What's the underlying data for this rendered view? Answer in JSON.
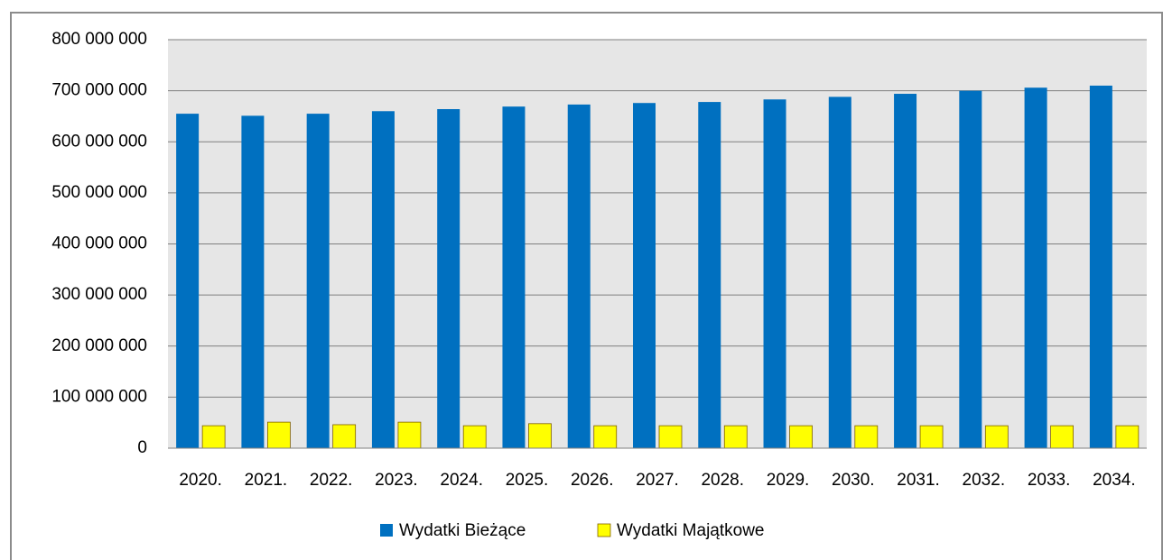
{
  "chart_data": {
    "type": "bar",
    "categories": [
      "2020.",
      "2021.",
      "2022.",
      "2023.",
      "2024.",
      "2025.",
      "2026.",
      "2027.",
      "2028.",
      "2029.",
      "2030.",
      "2031.",
      "2032.",
      "2033.",
      "2034."
    ],
    "series": [
      {
        "name": "Wydatki Bieżące",
        "color": "#0070c0",
        "values": [
          655000000,
          651000000,
          655000000,
          660000000,
          664000000,
          669000000,
          673000000,
          676000000,
          678000000,
          683000000,
          688000000,
          694000000,
          700000000,
          706000000,
          710000000
        ]
      },
      {
        "name": "Wydatki Majątkowe",
        "color": "#ffff00",
        "values": [
          44000000,
          51000000,
          46000000,
          51000000,
          44000000,
          48000000,
          44000000,
          44000000,
          44000000,
          44000000,
          44000000,
          44000000,
          44000000,
          44000000,
          44000000
        ]
      }
    ],
    "ylim": [
      0,
      800000000
    ],
    "yticks": [
      0,
      {
        "value": 100000000,
        "label": "100 000 000"
      },
      {
        "value": 200000000,
        "label": "200 000 000"
      },
      {
        "value": 300000000,
        "label": "300 000 000"
      },
      {
        "value": 400000000,
        "label": "400 000 000"
      },
      {
        "value": 500000000,
        "label": "500 000 000"
      },
      {
        "value": 600000000,
        "label": "600 000 000"
      },
      {
        "value": 700000000,
        "label": "700 000 000"
      },
      {
        "value": 800000000,
        "label": "800 000 000"
      }
    ],
    "grid": true,
    "legend": "bottom"
  }
}
